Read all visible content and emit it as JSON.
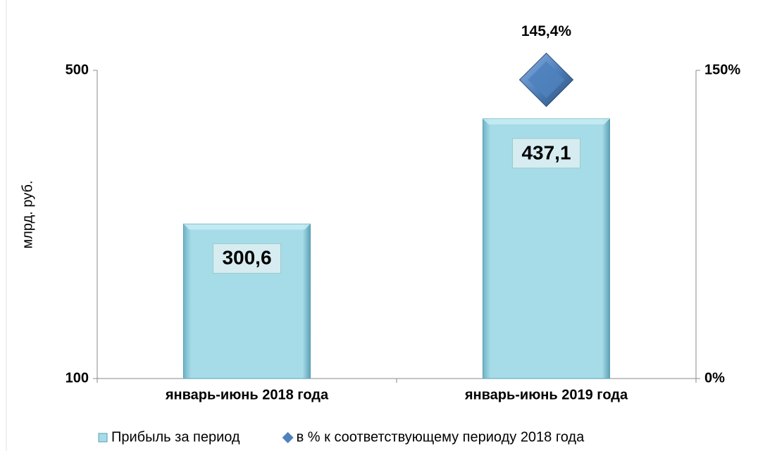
{
  "chart_data": {
    "type": "bar",
    "y_label": "млрд. руб.",
    "categories": [
      "январь-июнь 2018 года",
      "январь-июнь 2019 года"
    ],
    "series": [
      {
        "name": "Прибыль  за период",
        "type": "bar",
        "color": "#93cddd",
        "values": [
          300.6,
          437.1
        ],
        "value_labels": [
          "300,6",
          "437,1"
        ]
      },
      {
        "name": "в % к соответствующему периоду 2018 года",
        "type": "scatter",
        "axis": "y2",
        "color": "#4f81bd",
        "values": [
          null,
          145.4
        ],
        "value_labels": [
          null,
          "145,4%"
        ]
      }
    ],
    "ylim": [
      100,
      500
    ],
    "yticks": [
      100,
      500
    ],
    "y2lim": [
      0,
      150
    ],
    "y2ticks": [
      {
        "value": 0,
        "label": "0%"
      },
      {
        "value": 150,
        "label": "150%"
      }
    ],
    "legend": "bottom"
  }
}
